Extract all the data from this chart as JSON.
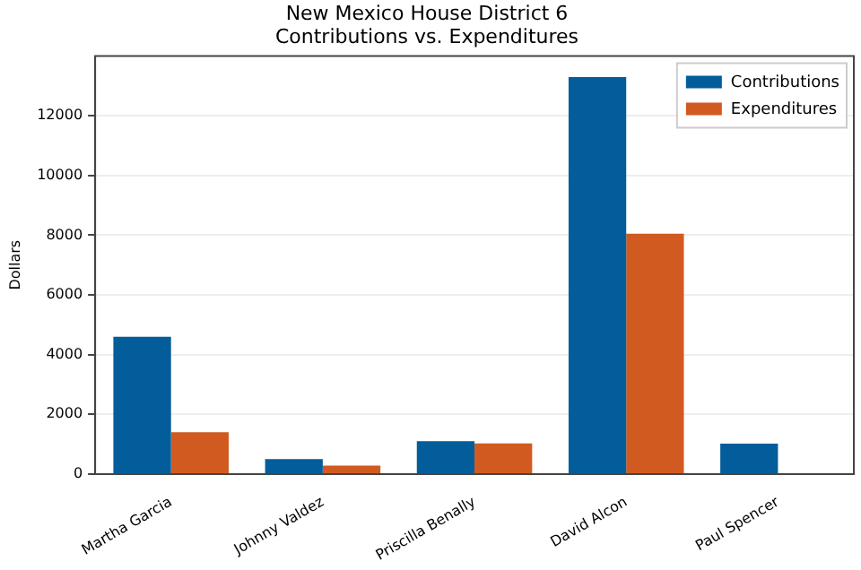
{
  "chart_data": {
    "type": "bar",
    "title": "New Mexico House District 6\nContributions vs. Expenditures",
    "ylabel": "Dollars",
    "categories": [
      "Martha Garcia",
      "Johnny Valdez",
      "Priscilla Benally",
      "David Alcon",
      "Paul Spencer"
    ],
    "series": [
      {
        "name": "Contributions",
        "color": "#035d9b",
        "values": [
          4600,
          500,
          1100,
          13300,
          1020
        ]
      },
      {
        "name": "Expenditures",
        "color": "#d15a20",
        "values": [
          1400,
          280,
          1030,
          8050,
          0
        ]
      }
    ],
    "ylim": [
      0,
      14000
    ],
    "yticks": [
      0,
      2000,
      4000,
      6000,
      8000,
      10000,
      12000
    ],
    "grid": "y",
    "legend": "top right"
  }
}
